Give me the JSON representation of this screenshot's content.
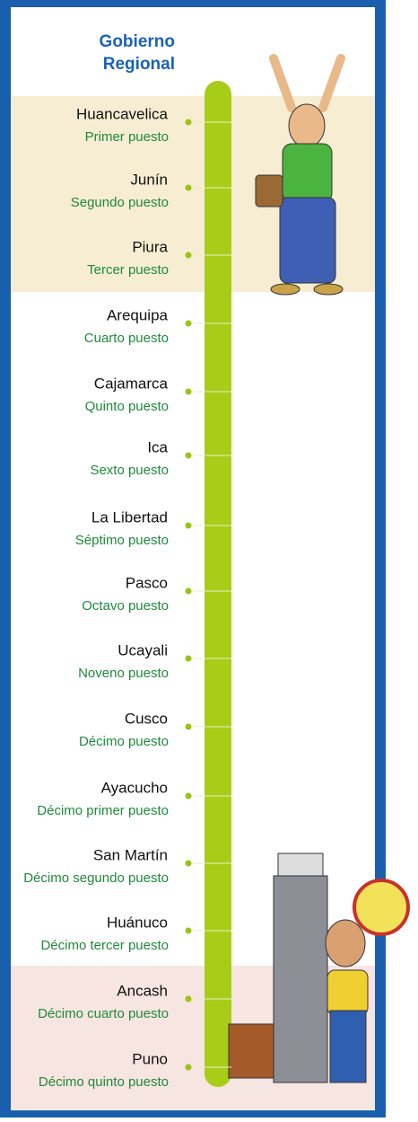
{
  "title": [
    "Gobierno",
    "Regional"
  ],
  "entries": [
    {
      "name": "Huancavelica",
      "rank": "Primer puesto"
    },
    {
      "name": "Junín",
      "rank": "Segundo puesto"
    },
    {
      "name": "Piura",
      "rank": "Tercer puesto"
    },
    {
      "name": "Arequipa",
      "rank": "Cuarto puesto"
    },
    {
      "name": "Cajamarca",
      "rank": "Quinto puesto"
    },
    {
      "name": "Ica",
      "rank": "Sexto puesto"
    },
    {
      "name": "La Libertad",
      "rank": "Séptimo puesto"
    },
    {
      "name": "Pasco",
      "rank": "Octavo puesto"
    },
    {
      "name": "Ucayali",
      "rank": "Noveno puesto"
    },
    {
      "name": "Cusco",
      "rank": "Décimo puesto"
    },
    {
      "name": "Ayacucho",
      "rank": "Décimo primer puesto"
    },
    {
      "name": "San Martín",
      "rank": "Décimo segundo puesto"
    },
    {
      "name": "Huánuco",
      "rank": "Décimo tercer puesto"
    },
    {
      "name": "Ancash",
      "rank": "Décimo cuarto puesto"
    },
    {
      "name": "Puno",
      "rank": "Décimo quinto puesto"
    }
  ]
}
